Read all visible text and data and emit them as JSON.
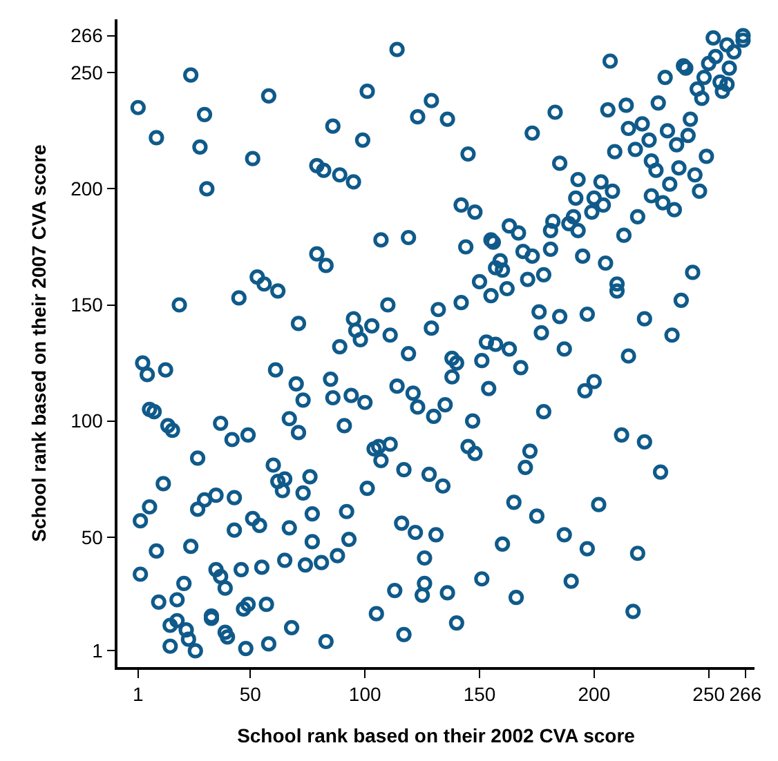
{
  "chart_data": {
    "type": "scatter",
    "xlabel": "School rank based on their 2002 CVA score",
    "ylabel": "School rank based on their 2007 CVA score",
    "xlim": [
      -8,
      270
    ],
    "ylim": [
      -6,
      273
    ],
    "xticks": [
      1,
      50,
      100,
      150,
      200,
      250,
      266
    ],
    "yticks": [
      1,
      50,
      100,
      150,
      200,
      250,
      266
    ],
    "marker": "circle",
    "series": [
      {
        "color": "#0f5a8a",
        "x": [
          1,
          9,
          24,
          30,
          28,
          31,
          51,
          58,
          86,
          79,
          82,
          89,
          95,
          99,
          101,
          114,
          123,
          129,
          107,
          119,
          136,
          145,
          173,
          183,
          207,
          206,
          214,
          228,
          231,
          239,
          240,
          252,
          258,
          265,
          265,
          261,
          259,
          253,
          250,
          248,
          245,
          247,
          255,
          256,
          258,
          215,
          221,
          224,
          218,
          209,
          232,
          236,
          241,
          242,
          249,
          225,
          227,
          237,
          244,
          246,
          233,
          225,
          230,
          235,
          219,
          213,
          185,
          193,
          203,
          208,
          192,
          200,
          204,
          199,
          142,
          148,
          163,
          167,
          182,
          181,
          189,
          191,
          193,
          155,
          19,
          45,
          53,
          56,
          62,
          79,
          83,
          71,
          89,
          95,
          96,
          98,
          103,
          110,
          111,
          119,
          129,
          132,
          3,
          5,
          13,
          61,
          70,
          73,
          85,
          86,
          94,
          100,
          114,
          121,
          123,
          130,
          6,
          8,
          14,
          16,
          37,
          42,
          49,
          67,
          71,
          91,
          104,
          106,
          111,
          27,
          144,
          156,
          159,
          157,
          160,
          169,
          173,
          181,
          195,
          205,
          243,
          238,
          210,
          210,
          222,
          234,
          215,
          150,
          155,
          162,
          171,
          178,
          142,
          176,
          185,
          197,
          177,
          187,
          153,
          157,
          163,
          151,
          138,
          140,
          138,
          168,
          154,
          200,
          196,
          135,
          147,
          178,
          212,
          222,
          145,
          148,
          172,
          60,
          62,
          65,
          64,
          76,
          73,
          101,
          107,
          117,
          128,
          12,
          6,
          2,
          27,
          30,
          35,
          43,
          51,
          54,
          43,
          67,
          77,
          92,
          93,
          77,
          116,
          122,
          131,
          126,
          126,
          125,
          113,
          105,
          117,
          9,
          24,
          2,
          21,
          18,
          10,
          35,
          37,
          39,
          46,
          55,
          65,
          74,
          81,
          88,
          47,
          49,
          57,
          33,
          33,
          18,
          15,
          22,
          23,
          15,
          26,
          39,
          40,
          48,
          58,
          68,
          83,
          134,
          170,
          229,
          165,
          175,
          202,
          160,
          187,
          197,
          219,
          151,
          190,
          136,
          166,
          217,
          140
        ],
        "values": [
          235,
          222,
          249,
          232,
          218,
          200,
          213,
          240,
          227,
          210,
          208,
          206,
          203,
          221,
          242,
          260,
          231,
          238,
          178,
          179,
          230,
          215,
          224,
          233,
          255,
          234,
          236,
          237,
          248,
          253,
          252,
          265,
          262,
          266,
          264,
          259,
          252,
          257,
          254,
          248,
          243,
          239,
          246,
          242,
          245,
          226,
          228,
          221,
          217,
          216,
          225,
          219,
          223,
          230,
          214,
          212,
          208,
          209,
          206,
          199,
          202,
          197,
          194,
          191,
          188,
          180,
          211,
          204,
          203,
          199,
          196,
          196,
          193,
          190,
          193,
          190,
          184,
          181,
          186,
          182,
          185,
          188,
          182,
          178,
          150,
          153,
          162,
          159,
          156,
          172,
          167,
          142,
          132,
          144,
          139,
          135,
          141,
          150,
          137,
          129,
          140,
          148,
          125,
          120,
          122,
          122,
          116,
          109,
          118,
          110,
          111,
          108,
          115,
          112,
          106,
          102,
          105,
          104,
          98,
          96,
          99,
          92,
          94,
          101,
          95,
          98,
          88,
          89,
          90,
          84,
          175,
          177,
          169,
          166,
          165,
          173,
          171,
          174,
          171,
          168,
          164,
          152,
          159,
          156,
          144,
          137,
          128,
          160,
          154,
          157,
          161,
          163,
          151,
          147,
          145,
          146,
          138,
          131,
          134,
          133,
          131,
          126,
          127,
          125,
          119,
          123,
          114,
          117,
          113,
          107,
          100,
          104,
          94,
          91,
          89,
          86,
          87,
          81,
          74,
          75,
          70,
          76,
          69,
          71,
          83,
          79,
          77,
          73,
          63,
          57,
          62,
          66,
          68,
          67,
          58,
          55,
          53,
          54,
          60,
          61,
          49,
          48,
          56,
          52,
          51,
          41,
          30,
          25,
          27,
          17,
          8,
          44,
          46,
          34,
          30,
          23,
          22,
          36,
          33,
          28,
          36,
          37,
          40,
          38,
          39,
          42,
          19,
          21,
          21,
          16,
          15,
          14,
          12,
          10,
          6,
          3,
          1,
          9,
          7,
          2,
          4,
          11,
          5,
          72,
          80,
          78,
          65,
          59,
          64,
          47,
          51,
          45,
          43,
          32,
          31,
          26,
          24,
          18,
          13
        ]
      }
    ]
  }
}
